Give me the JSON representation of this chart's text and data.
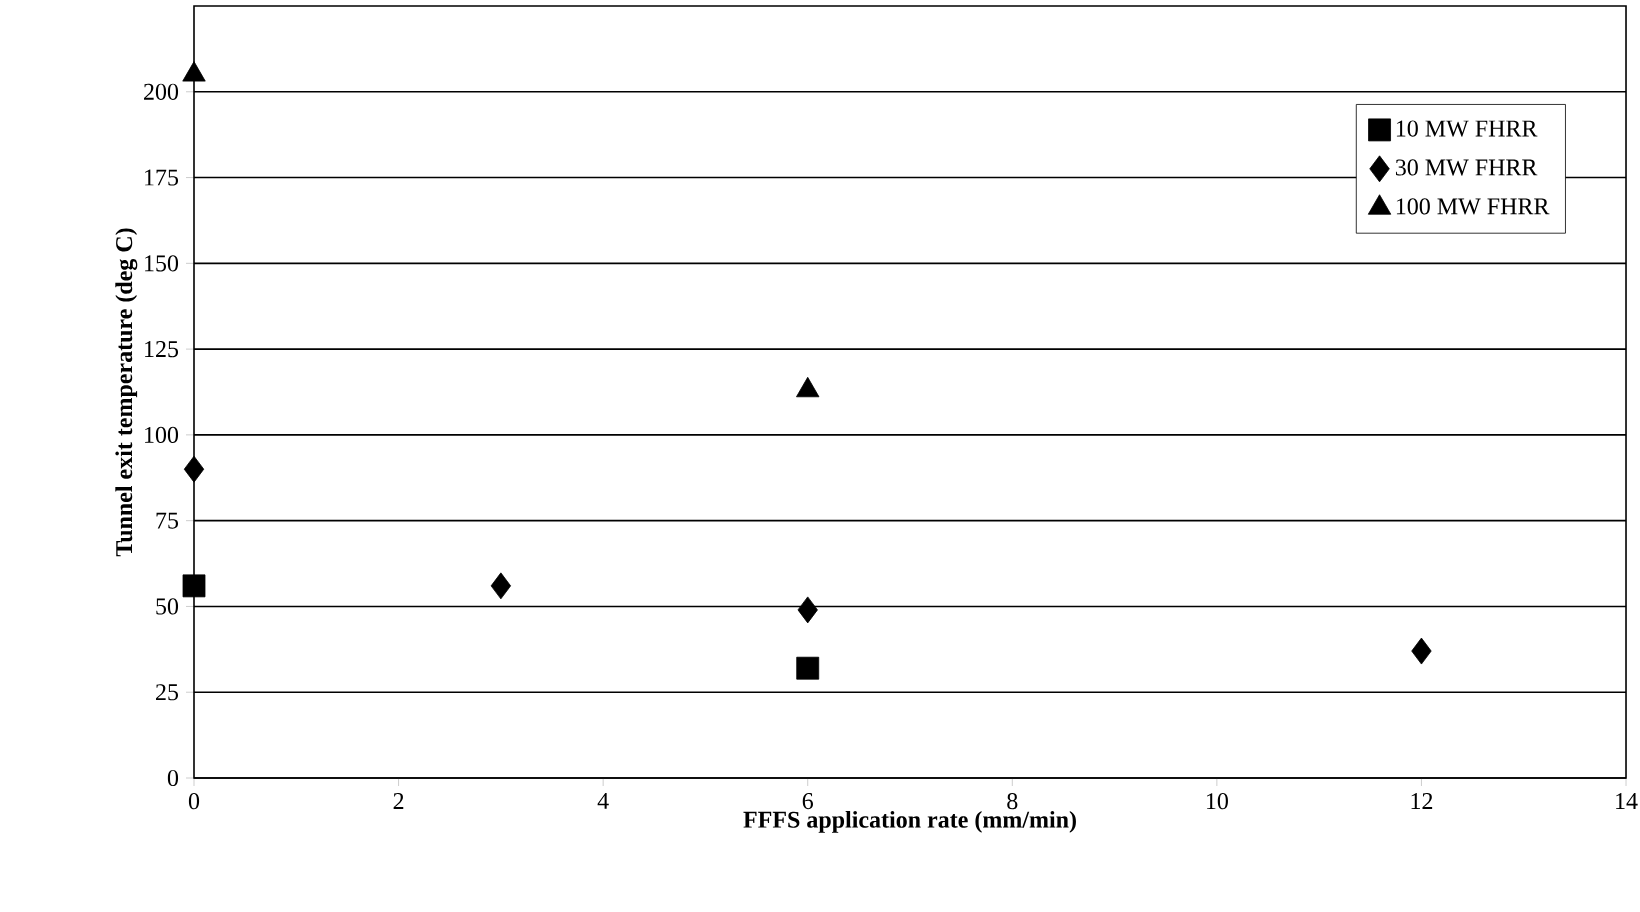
{
  "chart_data": {
    "type": "scatter",
    "xlabel": "FFFS application rate (mm/min)",
    "ylabel": "Tunnel exit temperature (deg C)",
    "series": [
      {
        "name": "10 MW FHRR",
        "color": "#000000",
        "marker": "square",
        "x": [
          0,
          6
        ],
        "values": [
          56,
          32
        ]
      },
      {
        "name": "30 MW FHRR",
        "color": "#000000",
        "marker": "diamond",
        "x": [
          0,
          3,
          6,
          12
        ],
        "values": [
          90,
          56,
          49,
          37
        ]
      },
      {
        "name": "100 MW FHRR",
        "color": "#000000",
        "marker": "triangle",
        "x": [
          0,
          6
        ],
        "values": [
          205,
          113
        ]
      }
    ],
    "xlim": [
      0,
      14
    ],
    "xticks": [
      0,
      2,
      4,
      6,
      8,
      10,
      12,
      14
    ],
    "ylim": [
      0,
      225
    ],
    "yticks": [
      0,
      25,
      50,
      75,
      100,
      125,
      150,
      175,
      200
    ],
    "grid": "y",
    "legend": "top right"
  }
}
